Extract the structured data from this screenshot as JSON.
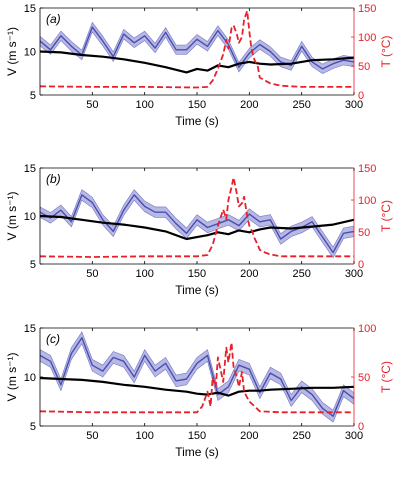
{
  "colors": {
    "velocity_line": "#4a4fb0",
    "velocity_band": "#b7b8e4",
    "black_line": "#000000",
    "temperature": "#e8202a"
  },
  "chart_data": [
    {
      "type": "line",
      "panel_label": "(a)",
      "xlabel": "Time (s)",
      "ylabel_left": "V (m s⁻¹)",
      "ylabel_right": "T (°C)",
      "xlim": [
        0,
        300
      ],
      "ylim_left": [
        5,
        15
      ],
      "ylim_right": [
        0,
        150
      ],
      "xticks": [
        50,
        100,
        150,
        200,
        250,
        300
      ],
      "yticks_left": [
        5,
        10,
        15
      ],
      "yticks_right": [
        0,
        50,
        100,
        150
      ],
      "series": [
        {
          "axis": "left",
          "role": "velocity-mean",
          "x": [
            0,
            10,
            20,
            30,
            40,
            50,
            60,
            70,
            80,
            90,
            100,
            110,
            120,
            130,
            140,
            150,
            160,
            170,
            180,
            190,
            200,
            210,
            220,
            230,
            240,
            250,
            260,
            270,
            280,
            290,
            300
          ],
          "y": [
            11.2,
            10.2,
            11.8,
            10.6,
            9.6,
            12.8,
            11.2,
            9.4,
            12.0,
            11.0,
            11.8,
            10.4,
            12.2,
            10.2,
            10.2,
            11.4,
            10.6,
            12.4,
            10.8,
            8.2,
            9.8,
            10.8,
            10.0,
            8.8,
            8.4,
            10.6,
            8.8,
            8.0,
            8.6,
            9.0,
            8.8
          ],
          "band": 0.55
        },
        {
          "axis": "left",
          "role": "black-line",
          "x": [
            0,
            20,
            40,
            60,
            80,
            100,
            120,
            140,
            150,
            160,
            170,
            180,
            190,
            200,
            210,
            220,
            240,
            260,
            280,
            300
          ],
          "y": [
            10.0,
            9.9,
            9.6,
            9.4,
            9.1,
            8.7,
            8.2,
            7.6,
            8.0,
            7.8,
            8.4,
            8.2,
            8.6,
            8.8,
            8.6,
            8.5,
            8.6,
            9.0,
            9.1,
            9.3
          ]
        },
        {
          "axis": "right",
          "role": "temperature",
          "x": [
            0,
            50,
            100,
            150,
            160,
            165,
            170,
            175,
            178,
            180,
            183,
            185,
            188,
            190,
            193,
            195,
            198,
            200,
            202,
            205,
            208,
            210,
            215,
            220,
            230,
            250,
            300
          ],
          "y": [
            15,
            14,
            14,
            13,
            14,
            25,
            45,
            70,
            95,
            80,
            115,
            120,
            105,
            90,
            100,
            130,
            145,
            110,
            80,
            60,
            50,
            30,
            25,
            20,
            16,
            14,
            14
          ]
        }
      ]
    },
    {
      "type": "line",
      "panel_label": "(b)",
      "xlabel": "Time (s)",
      "ylabel_left": "V (m s⁻¹)",
      "ylabel_right": "T (°C)",
      "xlim": [
        0,
        300
      ],
      "ylim_left": [
        5,
        15
      ],
      "ylim_right": [
        0,
        150
      ],
      "xticks": [
        50,
        100,
        150,
        200,
        250,
        300
      ],
      "yticks_left": [
        5,
        10,
        15
      ],
      "yticks_right": [
        0,
        50,
        100,
        150
      ],
      "series": [
        {
          "axis": "left",
          "role": "velocity-mean",
          "x": [
            0,
            10,
            20,
            30,
            40,
            50,
            60,
            70,
            80,
            90,
            100,
            110,
            120,
            130,
            140,
            150,
            160,
            170,
            180,
            190,
            200,
            210,
            220,
            230,
            240,
            250,
            260,
            270,
            280,
            290,
            300
          ],
          "y": [
            10.4,
            9.8,
            10.6,
            9.4,
            12.2,
            11.4,
            9.6,
            8.4,
            10.6,
            12.2,
            11.0,
            10.4,
            10.4,
            9.2,
            8.2,
            9.6,
            8.8,
            9.2,
            9.6,
            9.0,
            10.2,
            9.4,
            9.6,
            7.6,
            8.4,
            8.8,
            9.4,
            7.8,
            6.2,
            8.2,
            8.4
          ],
          "band": 0.55
        },
        {
          "axis": "left",
          "role": "black-line",
          "x": [
            0,
            20,
            40,
            60,
            80,
            100,
            120,
            140,
            150,
            160,
            170,
            180,
            190,
            200,
            210,
            220,
            240,
            260,
            280,
            300
          ],
          "y": [
            10.0,
            9.9,
            9.6,
            9.3,
            9.1,
            8.8,
            8.4,
            7.6,
            7.8,
            8.0,
            8.3,
            8.1,
            8.5,
            8.3,
            8.6,
            8.8,
            8.7,
            8.9,
            9.1,
            9.6
          ]
        },
        {
          "axis": "right",
          "role": "temperature",
          "x": [
            0,
            50,
            100,
            150,
            160,
            165,
            170,
            175,
            178,
            180,
            183,
            185,
            188,
            190,
            193,
            195,
            198,
            200,
            203,
            205,
            208,
            210,
            215,
            220,
            230,
            250,
            300
          ],
          "y": [
            12,
            11,
            12,
            12,
            14,
            30,
            60,
            85,
            70,
            100,
            120,
            135,
            110,
            90,
            95,
            105,
            75,
            60,
            50,
            40,
            30,
            22,
            18,
            15,
            12,
            12,
            12
          ]
        }
      ]
    },
    {
      "type": "line",
      "panel_label": "(c)",
      "xlabel": "Time (s)",
      "ylabel_left": "V (m s⁻¹)",
      "ylabel_right": "T (°C)",
      "xlim": [
        0,
        300
      ],
      "ylim_left": [
        5,
        15
      ],
      "ylim_right": [
        0,
        100
      ],
      "xticks": [
        50,
        100,
        150,
        200,
        250,
        300
      ],
      "yticks_left": [
        5,
        10,
        15
      ],
      "yticks_right": [
        0,
        50,
        100
      ],
      "series": [
        {
          "axis": "left",
          "role": "velocity-mean",
          "x": [
            0,
            10,
            20,
            30,
            40,
            50,
            60,
            70,
            80,
            90,
            100,
            110,
            120,
            130,
            140,
            150,
            160,
            170,
            180,
            190,
            200,
            210,
            220,
            230,
            240,
            250,
            260,
            270,
            280,
            290,
            300
          ],
          "y": [
            12.2,
            11.6,
            9.2,
            12.4,
            14.0,
            11.2,
            10.6,
            12.0,
            11.6,
            10.0,
            12.2,
            10.6,
            11.4,
            9.6,
            9.8,
            11.4,
            12.2,
            8.2,
            9.0,
            11.2,
            10.8,
            8.4,
            10.4,
            9.8,
            7.6,
            9.0,
            8.2,
            6.8,
            6.0,
            8.6,
            7.8
          ],
          "band": 0.6
        },
        {
          "axis": "left",
          "role": "black-line",
          "x": [
            0,
            20,
            40,
            60,
            80,
            100,
            120,
            140,
            150,
            160,
            170,
            180,
            190,
            200,
            210,
            220,
            240,
            260,
            280,
            300
          ],
          "y": [
            9.9,
            9.8,
            9.7,
            9.5,
            9.2,
            9.0,
            8.7,
            8.5,
            8.3,
            8.2,
            8.4,
            8.1,
            8.5,
            8.6,
            8.6,
            8.7,
            8.8,
            8.9,
            8.9,
            9.0
          ]
        },
        {
          "axis": "right",
          "role": "temperature",
          "x": [
            0,
            50,
            100,
            150,
            155,
            160,
            163,
            165,
            168,
            170,
            173,
            175,
            178,
            180,
            183,
            185,
            188,
            190,
            193,
            195,
            200,
            205,
            210,
            230,
            250,
            300
          ],
          "y": [
            15,
            14,
            14,
            14,
            20,
            35,
            20,
            50,
            40,
            70,
            55,
            45,
            80,
            65,
            85,
            60,
            50,
            40,
            55,
            35,
            25,
            20,
            15,
            14,
            14,
            14
          ]
        }
      ]
    }
  ]
}
